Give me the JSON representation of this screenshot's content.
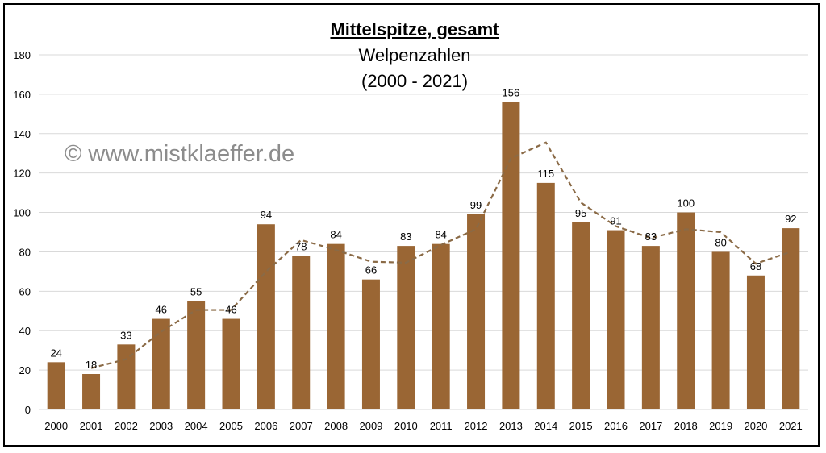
{
  "chart_data": {
    "type": "bar",
    "title": "Mittelspitze, gesamt",
    "subtitle_line1": "Welpenzahlen",
    "subtitle_line2": "(2000 - 2021)",
    "watermark": "© www.mistklaeffer.de",
    "categories": [
      "2000",
      "2001",
      "2002",
      "2003",
      "2004",
      "2005",
      "2006",
      "2007",
      "2008",
      "2009",
      "2010",
      "2011",
      "2012",
      "2013",
      "2014",
      "2015",
      "2016",
      "2017",
      "2018",
      "2019",
      "2020",
      "2021"
    ],
    "values": [
      24,
      18,
      33,
      46,
      55,
      46,
      94,
      78,
      84,
      66,
      83,
      84,
      99,
      156,
      115,
      95,
      91,
      83,
      100,
      80,
      68,
      92
    ],
    "trendline": {
      "type": "moving-average",
      "period": 2,
      "style": "dashed"
    },
    "ylim": [
      0,
      180
    ],
    "yticks": [
      0,
      20,
      40,
      60,
      80,
      100,
      120,
      140,
      160,
      180
    ],
    "grid": true,
    "legend": "none",
    "colors": {
      "bar": "#9a6634",
      "trend": "#8a6a46",
      "grid": "#d9d9d9"
    }
  }
}
